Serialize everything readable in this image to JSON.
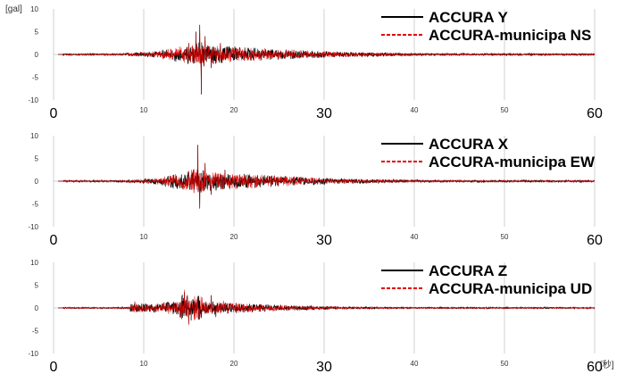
{
  "y_unit_label": "[gal]",
  "x_unit_label": "[秒]",
  "colors": {
    "black_trace": "#000000",
    "red_trace": "#e00000",
    "grid": "#d0d0d0"
  },
  "chart_data": [
    {
      "type": "line",
      "component": "Y / NS",
      "xlim": [
        0,
        60
      ],
      "ylim": [
        -10,
        10
      ],
      "y_ticks": [
        "10",
        "5",
        "0",
        "-5",
        "-10"
      ],
      "x_ticks": [
        {
          "value": 0,
          "label": "0",
          "size": "big"
        },
        {
          "value": 10,
          "label": "10",
          "size": "small"
        },
        {
          "value": 20,
          "label": "20",
          "size": "small"
        },
        {
          "value": 30,
          "label": "30",
          "size": "big"
        },
        {
          "value": 40,
          "label": "40",
          "size": "small"
        },
        {
          "value": 50,
          "label": "50",
          "size": "small"
        },
        {
          "value": 60,
          "label": "60",
          "size": "big"
        }
      ],
      "series": [
        {
          "name": "ACCURA Y",
          "color": "#000000",
          "style": "solid",
          "peaks": [
            [
              15.0,
              2.5
            ],
            [
              15.8,
              5.0
            ],
            [
              16.2,
              6.5
            ],
            [
              16.4,
              -8.8
            ],
            [
              16.8,
              4.0
            ],
            [
              17.5,
              -3.0
            ],
            [
              18.5,
              2.5
            ]
          ]
        },
        {
          "name": "ACCURA-municipa NS",
          "color": "#e00000",
          "style": "dashed",
          "peaks": [
            [
              15.0,
              2.4
            ],
            [
              15.8,
              4.8
            ],
            [
              16.2,
              6.2
            ],
            [
              16.4,
              -8.5
            ],
            [
              16.8,
              3.8
            ],
            [
              17.5,
              -2.9
            ],
            [
              18.5,
              2.4
            ]
          ]
        }
      ]
    },
    {
      "type": "line",
      "component": "X / EW",
      "xlim": [
        0,
        60
      ],
      "ylim": [
        -10,
        10
      ],
      "y_ticks": [
        "10",
        "5",
        "0",
        "-5",
        "-10"
      ],
      "x_ticks": [
        {
          "value": 0,
          "label": "0",
          "size": "big"
        },
        {
          "value": 10,
          "label": "10",
          "size": "small"
        },
        {
          "value": 20,
          "label": "20",
          "size": "small"
        },
        {
          "value": 30,
          "label": "30",
          "size": "big"
        },
        {
          "value": 40,
          "label": "40",
          "size": "small"
        },
        {
          "value": 50,
          "label": "50",
          "size": "small"
        },
        {
          "value": 60,
          "label": "60",
          "size": "big"
        }
      ],
      "series": [
        {
          "name": "ACCURA X",
          "color": "#000000",
          "style": "solid",
          "peaks": [
            [
              15.5,
              2.5
            ],
            [
              16.0,
              8.0
            ],
            [
              16.2,
              -6.0
            ],
            [
              16.8,
              4.0
            ],
            [
              17.5,
              -3.0
            ],
            [
              19.0,
              2.5
            ]
          ]
        },
        {
          "name": "ACCURA-municipa EW",
          "color": "#e00000",
          "style": "dashed",
          "peaks": [
            [
              15.5,
              2.4
            ],
            [
              16.0,
              7.7
            ],
            [
              16.2,
              -5.8
            ],
            [
              16.8,
              3.8
            ],
            [
              17.5,
              -2.9
            ],
            [
              19.0,
              2.4
            ]
          ]
        }
      ]
    },
    {
      "type": "line",
      "component": "Z / UD",
      "xlim": [
        0,
        60
      ],
      "ylim": [
        -10,
        10
      ],
      "y_ticks": [
        "10",
        "5",
        "0",
        "-5",
        "-10"
      ],
      "x_ticks": [
        {
          "value": 0,
          "label": "0",
          "size": "big"
        },
        {
          "value": 10,
          "label": "10",
          "size": "small"
        },
        {
          "value": 20,
          "label": "20",
          "size": "small"
        },
        {
          "value": 30,
          "label": "30",
          "size": "big"
        },
        {
          "value": 40,
          "label": "40",
          "size": "small"
        },
        {
          "value": 50,
          "label": "50",
          "size": "small"
        },
        {
          "value": 60,
          "label": "60",
          "size": "big"
        }
      ],
      "series": [
        {
          "name": "ACCURA Z",
          "color": "#000000",
          "style": "solid",
          "peaks": [
            [
              9.0,
              1.2
            ],
            [
              14.5,
              3.5
            ],
            [
              15.0,
              -3.5
            ],
            [
              16.0,
              2.5
            ],
            [
              17.5,
              2.8
            ],
            [
              18.0,
              -2.0
            ]
          ]
        },
        {
          "name": "ACCURA-municipa UD",
          "color": "#e00000",
          "style": "dashed",
          "peaks": [
            [
              9.0,
              1.5
            ],
            [
              14.5,
              4.0
            ],
            [
              15.0,
              -3.8
            ],
            [
              16.0,
              2.6
            ],
            [
              17.5,
              2.5
            ],
            [
              18.0,
              -1.8
            ]
          ]
        }
      ]
    }
  ]
}
